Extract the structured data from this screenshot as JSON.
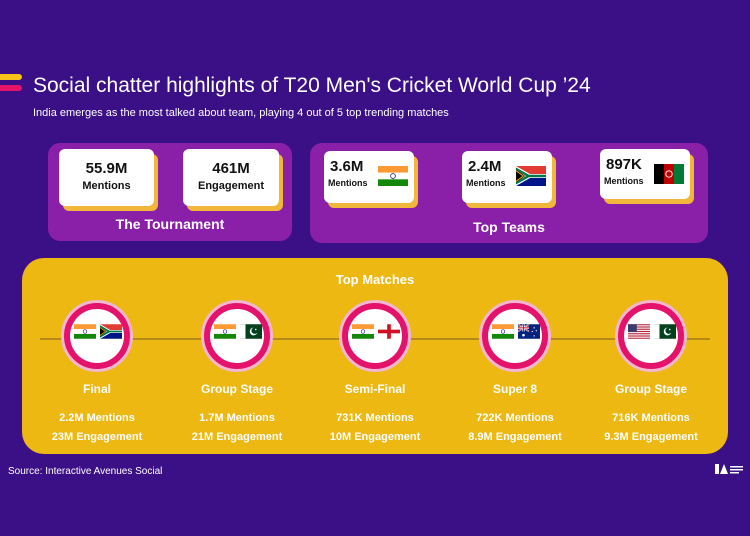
{
  "header": {
    "title": "Social chatter highlights of T20 Men's Cricket World Cup ’24",
    "subtitle": "India emerges as the most talked about team, playing 4 out of 5 top trending matches"
  },
  "tournament": {
    "label": "The Tournament",
    "stats": [
      {
        "value": "55.9M",
        "label": "Mentions"
      },
      {
        "value": "461M",
        "label": "Engagement"
      }
    ]
  },
  "top_teams": {
    "label": "Top Teams",
    "teams": [
      {
        "value": "3.6M",
        "label": "Mentions",
        "flag": "india-flag"
      },
      {
        "value": "2.4M",
        "label": "Mentions",
        "flag": "south-africa-flag"
      },
      {
        "value": "897K",
        "label": "Mentions",
        "flag": "afghanistan-flag"
      }
    ]
  },
  "top_matches": {
    "title": "Top Matches",
    "matches": [
      {
        "stage": "Final",
        "mentions": "2.2M Mentions",
        "engagement": "23M Engagement",
        "flags": [
          "india-flag",
          "south-africa-flag"
        ]
      },
      {
        "stage": "Group Stage",
        "mentions": "1.7M Mentions",
        "engagement": "21M Engagement",
        "flags": [
          "india-flag",
          "pakistan-flag"
        ]
      },
      {
        "stage": "Semi-Final",
        "mentions": "731K Mentions",
        "engagement": "10M Engagement",
        "flags": [
          "india-flag",
          "england-flag"
        ]
      },
      {
        "stage": "Super 8",
        "mentions": "722K Mentions",
        "engagement": "8.9M Engagement",
        "flags": [
          "india-flag",
          "australia-flag"
        ]
      },
      {
        "stage": "Group Stage",
        "mentions": "716K Mentions",
        "engagement": "9.3M Engagement",
        "flags": [
          "usa-flag",
          "pakistan-flag"
        ]
      }
    ]
  },
  "footer": {
    "source": "Source: Interactive Avenues Social",
    "logo_icon": "interactive-avenues-logo"
  },
  "colors": {
    "background": "#3b0f86",
    "panel": "#8a1fa8",
    "matches_panel": "#ecb811",
    "accent_yellow": "#f7c21a",
    "accent_pink": "#e4126b"
  }
}
